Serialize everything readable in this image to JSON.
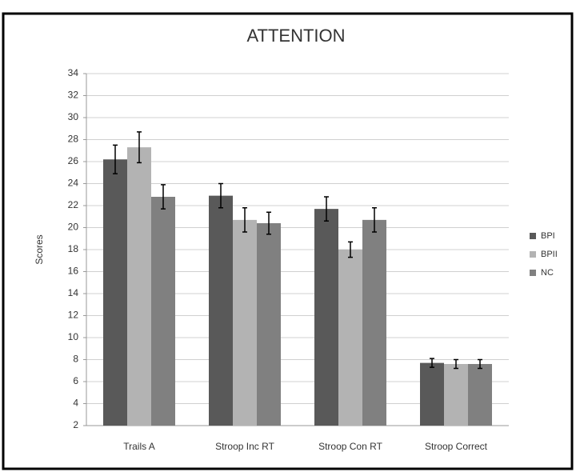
{
  "chart_data": {
    "type": "bar",
    "title": "ATTENTION",
    "y_label": "Scores",
    "categories": [
      "Trails A",
      "Stroop Inc RT",
      "Stroop Con RT",
      "Stroop Correct"
    ],
    "series": [
      {
        "name": "BPI",
        "color": "#595959",
        "values": [
          26.2,
          22.9,
          21.7,
          7.7
        ],
        "error": [
          1.3,
          1.1,
          1.1,
          0.4
        ]
      },
      {
        "name": "BPII",
        "color": "#b3b3b3",
        "values": [
          27.3,
          20.7,
          18.0,
          7.6
        ],
        "error": [
          1.4,
          1.1,
          0.7,
          0.4
        ]
      },
      {
        "name": "NC",
        "color": "#808080",
        "values": [
          22.8,
          20.4,
          20.7,
          7.6
        ],
        "error": [
          1.1,
          1.0,
          1.1,
          0.4
        ]
      }
    ],
    "ylim": [
      2,
      34
    ],
    "yticks": [
      2,
      4,
      6,
      8,
      10,
      12,
      14,
      16,
      18,
      20,
      22,
      24,
      26,
      28,
      30,
      32,
      34
    ],
    "grid": true,
    "legend": "right"
  }
}
